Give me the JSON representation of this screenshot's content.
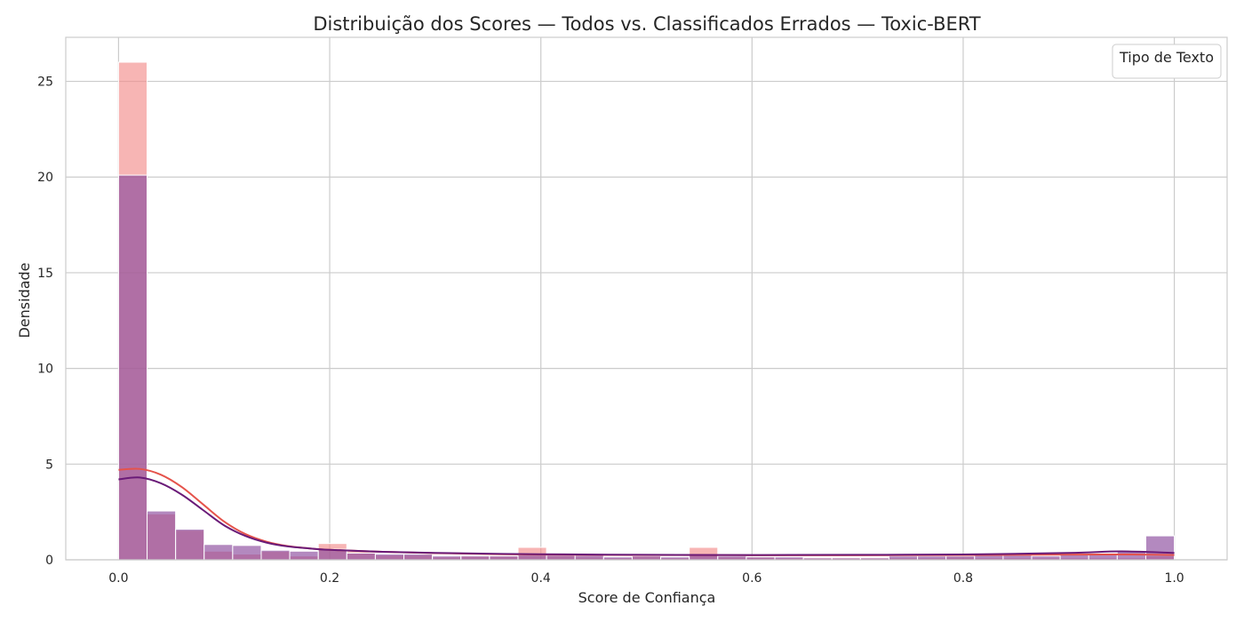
{
  "chart_data": {
    "type": "bar",
    "title": "Distribuição dos Scores — Todos vs. Classificados Errados — Toxic-BERT",
    "xlabel": "Score de Confiança",
    "ylabel": "Densidade",
    "xlim": [
      -0.05,
      1.05
    ],
    "ylim": [
      0,
      27.3
    ],
    "x_ticks": [
      0.0,
      0.2,
      0.4,
      0.6,
      0.8,
      1.0
    ],
    "x_tick_labels": [
      "0.0",
      "0.2",
      "0.4",
      "0.6",
      "0.8",
      "1.0"
    ],
    "y_ticks": [
      0,
      5,
      10,
      15,
      20,
      25
    ],
    "y_tick_labels": [
      "0",
      "5",
      "10",
      "15",
      "20",
      "25"
    ],
    "grid": true,
    "legend": {
      "title": "Tipo de Texto",
      "placement": "top-right",
      "entries": []
    },
    "bin_start": 0.0,
    "bin_width": 0.027027,
    "series": [
      {
        "color": "#f28e8c",
        "values": [
          26.0,
          2.4,
          1.55,
          0.45,
          0.3,
          0.45,
          0.2,
          0.85,
          0.45,
          0.25,
          0.25,
          0.15,
          0.2,
          0.2,
          0.65,
          0.2,
          0.15,
          0.1,
          0.2,
          0.1,
          0.65,
          0.15,
          0.15,
          0.1,
          0.1,
          0.1,
          0.1,
          0.1,
          0.1,
          0.15,
          0.1,
          0.1,
          0.1,
          0.1,
          0.1,
          0.1,
          0.2
        ]
      },
      {
        "color": "#8b4a9c",
        "values": [
          20.1,
          2.55,
          1.6,
          0.8,
          0.75,
          0.5,
          0.45,
          0.55,
          0.35,
          0.3,
          0.3,
          0.2,
          0.2,
          0.2,
          0.25,
          0.25,
          0.25,
          0.15,
          0.2,
          0.15,
          0.25,
          0.2,
          0.15,
          0.15,
          0.1,
          0.1,
          0.1,
          0.2,
          0.2,
          0.2,
          0.25,
          0.25,
          0.2,
          0.3,
          0.3,
          0.45,
          1.25
        ]
      }
    ],
    "kde": [
      {
        "color": "#e5534b",
        "x": [
          0.0,
          0.02,
          0.04,
          0.06,
          0.08,
          0.1,
          0.12,
          0.14,
          0.16,
          0.18,
          0.2,
          0.25,
          0.3,
          0.35,
          0.4,
          0.5,
          0.6,
          0.7,
          0.8,
          0.9,
          0.95,
          1.0
        ],
        "y": [
          4.7,
          4.75,
          4.45,
          3.8,
          2.9,
          2.0,
          1.35,
          0.95,
          0.72,
          0.6,
          0.52,
          0.42,
          0.35,
          0.3,
          0.27,
          0.25,
          0.24,
          0.24,
          0.25,
          0.27,
          0.28,
          0.25
        ]
      },
      {
        "color": "#6a1b78",
        "x": [
          0.0,
          0.02,
          0.04,
          0.06,
          0.08,
          0.1,
          0.12,
          0.14,
          0.16,
          0.18,
          0.2,
          0.25,
          0.3,
          0.35,
          0.4,
          0.5,
          0.6,
          0.7,
          0.8,
          0.9,
          0.95,
          1.0
        ],
        "y": [
          4.2,
          4.3,
          4.0,
          3.4,
          2.6,
          1.8,
          1.25,
          0.9,
          0.7,
          0.6,
          0.52,
          0.42,
          0.36,
          0.32,
          0.29,
          0.26,
          0.25,
          0.26,
          0.28,
          0.36,
          0.44,
          0.36
        ]
      }
    ]
  }
}
